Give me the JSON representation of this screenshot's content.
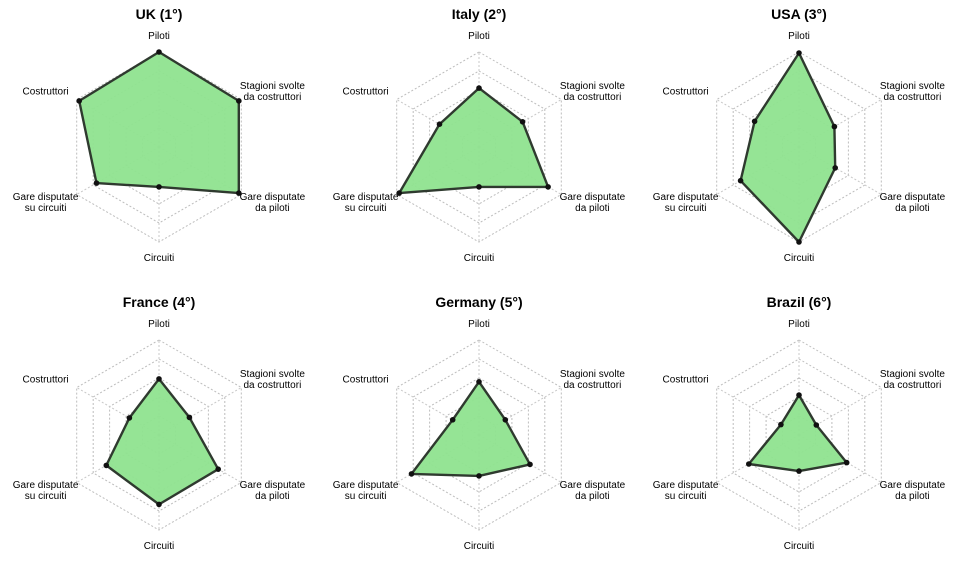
{
  "chart_data": [
    {
      "type": "radar",
      "title": "UK (1°)",
      "axes": [
        "Piloti",
        "Stagioni svolte\nda costruttori",
        "Gare disputate\nda piloti",
        "Circuiti",
        "Gare disputate\nsu circuiti",
        "Costruttori"
      ],
      "values": [
        1.0,
        0.97,
        0.97,
        0.42,
        0.76,
        0.97
      ],
      "rlim": [
        0,
        1
      ],
      "grid": true
    },
    {
      "type": "radar",
      "title": "Italy (2°)",
      "axes": [
        "Piloti",
        "Stagioni svolte\nda costruttori",
        "Gare disputate\nda piloti",
        "Circuiti",
        "Gare disputate\nsu circuiti",
        "Costruttori"
      ],
      "values": [
        0.62,
        0.53,
        0.84,
        0.42,
        0.97,
        0.48
      ],
      "rlim": [
        0,
        1
      ],
      "grid": true
    },
    {
      "type": "radar",
      "title": "USA (3°)",
      "axes": [
        "Piloti",
        "Stagioni svolte\nda costruttori",
        "Gare disputate\nda piloti",
        "Circuiti",
        "Gare disputate\nsu circuiti",
        "Costruttori"
      ],
      "values": [
        0.99,
        0.43,
        0.44,
        1.0,
        0.71,
        0.54
      ],
      "rlim": [
        0,
        1
      ],
      "grid": true
    },
    {
      "type": "radar",
      "title": "France (4°)",
      "axes": [
        "Piloti",
        "Stagioni svolte\nda costruttori",
        "Gare disputate\nda piloti",
        "Circuiti",
        "Gare disputate\nsu circuiti",
        "Costruttori"
      ],
      "values": [
        0.59,
        0.37,
        0.72,
        0.73,
        0.64,
        0.36
      ],
      "rlim": [
        0,
        1
      ],
      "grid": true
    },
    {
      "type": "radar",
      "title": "Germany (5°)",
      "axes": [
        "Piloti",
        "Stagioni svolte\nda costruttori",
        "Gare disputate\nda piloti",
        "Circuiti",
        "Gare disputate\nsu circuiti",
        "Costruttori"
      ],
      "values": [
        0.56,
        0.32,
        0.62,
        0.43,
        0.82,
        0.32
      ],
      "rlim": [
        0,
        1
      ],
      "grid": true
    },
    {
      "type": "radar",
      "title": "Brazil (6°)",
      "axes": [
        "Piloti",
        "Stagioni svolte\nda costruttori",
        "Gare disputate\nda piloti",
        "Circuiti",
        "Gare disputate\nsu circuiti",
        "Costruttori"
      ],
      "values": [
        0.42,
        0.21,
        0.58,
        0.38,
        0.61,
        0.22
      ],
      "rlim": [
        0,
        1
      ],
      "grid": true
    }
  ],
  "colors": {
    "fill": "#8fe38f",
    "stroke": "#2f3a2f",
    "point": "#111111",
    "grid": "#bdbdbd"
  }
}
